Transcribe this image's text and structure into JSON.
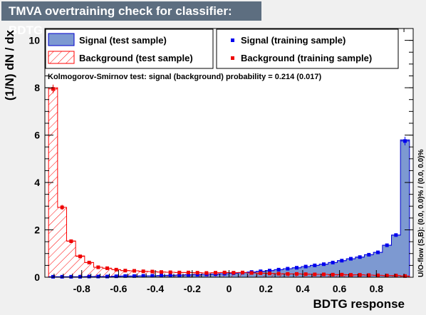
{
  "chart_data": {
    "type": "bar",
    "title": "TMVA overtraining check for classifier: BDTG",
    "xlabel": "BDTG response",
    "ylabel": "(1/N) dN / dx",
    "xlim": [
      -1.0,
      1.0
    ],
    "ylim": [
      0,
      10.5
    ],
    "x_ticks": [
      "-0.8",
      "-0.6",
      "-0.4",
      "-0.2",
      "0",
      "0.2",
      "0.4",
      "0.6",
      "0.8"
    ],
    "y_ticks": [
      "0",
      "2",
      "4",
      "6",
      "8",
      "10"
    ],
    "bins": 40,
    "bin_range": [
      -0.98,
      0.98
    ],
    "series": [
      {
        "name": "Signal (test sample)",
        "style": "filled-histogram",
        "color": "#7d99d1",
        "values": [
          0.02,
          0.02,
          0.02,
          0.02,
          0.03,
          0.03,
          0.03,
          0.04,
          0.05,
          0.05,
          0.06,
          0.06,
          0.07,
          0.08,
          0.09,
          0.1,
          0.11,
          0.12,
          0.13,
          0.15,
          0.17,
          0.19,
          0.22,
          0.25,
          0.28,
          0.32,
          0.36,
          0.4,
          0.45,
          0.5,
          0.55,
          0.62,
          0.7,
          0.78,
          0.85,
          0.95,
          1.05,
          1.35,
          1.78,
          5.8
        ]
      },
      {
        "name": "Background (test sample)",
        "style": "hatched-histogram",
        "color": "#ff0000",
        "values": [
          8.0,
          2.95,
          1.53,
          0.9,
          0.62,
          0.42,
          0.38,
          0.32,
          0.28,
          0.27,
          0.25,
          0.24,
          0.22,
          0.21,
          0.2,
          0.2,
          0.19,
          0.18,
          0.19,
          0.2,
          0.19,
          0.2,
          0.18,
          0.17,
          0.16,
          0.15,
          0.14,
          0.14,
          0.13,
          0.12,
          0.12,
          0.11,
          0.11,
          0.1,
          0.1,
          0.09,
          0.08,
          0.07,
          0.07,
          0.05
        ]
      },
      {
        "name": "Signal (training sample)",
        "style": "markers",
        "color": "#0000ee",
        "values": [
          0.02,
          0.02,
          0.02,
          0.02,
          0.03,
          0.03,
          0.03,
          0.04,
          0.05,
          0.05,
          0.06,
          0.06,
          0.07,
          0.08,
          0.09,
          0.1,
          0.11,
          0.12,
          0.13,
          0.15,
          0.17,
          0.19,
          0.22,
          0.25,
          0.28,
          0.32,
          0.36,
          0.4,
          0.45,
          0.5,
          0.55,
          0.62,
          0.7,
          0.78,
          0.85,
          0.95,
          1.05,
          1.35,
          1.78,
          5.75
        ]
      },
      {
        "name": "Background (training sample)",
        "style": "markers",
        "color": "#ee0000",
        "values": [
          7.95,
          2.95,
          1.52,
          0.88,
          0.62,
          0.42,
          0.38,
          0.32,
          0.28,
          0.27,
          0.25,
          0.24,
          0.22,
          0.21,
          0.2,
          0.2,
          0.19,
          0.18,
          0.19,
          0.2,
          0.19,
          0.2,
          0.18,
          0.17,
          0.16,
          0.15,
          0.14,
          0.14,
          0.13,
          0.12,
          0.12,
          0.11,
          0.11,
          0.1,
          0.1,
          0.09,
          0.08,
          0.07,
          0.07,
          0.05
        ]
      }
    ],
    "annotation": "Kolmogorov-Smirnov test: signal (background) probability = 0.214 (0.017)",
    "side_label": "U/O-flow (S,B): (0.0, 0.0)% / (0.0, 0.0)%",
    "legend": {
      "placement": "top",
      "entries": [
        "Signal (test sample)",
        "Signal (training sample)",
        "Background (test sample)",
        "Background (training sample)"
      ]
    },
    "grid": false
  }
}
